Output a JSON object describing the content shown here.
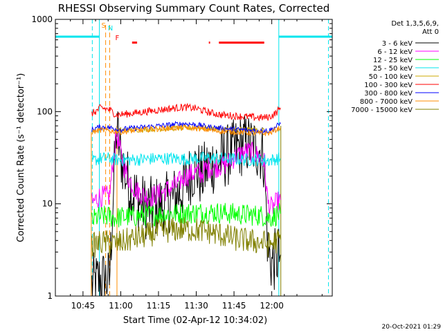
{
  "chart_data": {
    "type": "line",
    "title": "RHESSI Observing Summary Count Rates, Corrected",
    "xlabel": "Start Time (02-Apr-12 10:34:02)",
    "ylabel": "Corrected Count Rate (s⁻¹ detector⁻¹)",
    "yscale": "log",
    "ylim": [
      1,
      1000
    ],
    "xlim_minutes": [
      34.03,
      144.03
    ],
    "x_ticks": [
      "10:45",
      "11:00",
      "11:15",
      "11:30",
      "11:45",
      "12:00"
    ],
    "x_ticks_minutes": [
      45,
      60,
      75,
      90,
      105,
      120
    ],
    "y_ticks": [
      "1",
      "10",
      "100",
      "1000"
    ],
    "legend_header": [
      "Det 1,3,5,6,9,",
      "Att 0"
    ],
    "legend_position": "right, outside plot",
    "footer_date": "20-Oct-2021 01:29",
    "flags": [
      {
        "label": "S",
        "color": "#ff8c00"
      },
      {
        "label": "N",
        "color": "#00e5ee"
      },
      {
        "label": "F",
        "color": "#ff0000"
      }
    ],
    "night_intervals_minutes": [
      [
        34.03,
        51.5
      ],
      [
        122.8,
        144.03
      ]
    ],
    "night_level": 650,
    "night_color": "#00e5ee",
    "saa_lines_minutes": [
      54.0,
      55.6
    ],
    "flare_segments_minutes": [
      [
        55.3,
        57.3
      ],
      [
        61.5,
        65.5
      ],
      [
        92.0,
        94.5
      ],
      [
        96.0,
        116.0
      ]
    ],
    "flare_level": 560,
    "data_range_minutes": [
      48.3,
      123.6
    ],
    "series": [
      {
        "name": "3 - 6 keV",
        "color": "#000000",
        "x": [
          48.5,
          50.5,
          52.0,
          55.5,
          58.2,
          58.8,
          60,
          62,
          64,
          66,
          68,
          70,
          72,
          74,
          76,
          78,
          80,
          82,
          84,
          86,
          88,
          90,
          92,
          94,
          96,
          98,
          100,
          102,
          104,
          106,
          108,
          110,
          112,
          114,
          116,
          117,
          118.5,
          120,
          121.5,
          123.5
        ],
        "y": [
          1.3,
          1.4,
          1.5,
          1.5,
          62,
          55,
          34,
          20,
          15,
          12,
          10,
          9,
          9,
          9.2,
          9.5,
          10,
          11,
          12,
          14,
          17,
          22,
          25,
          19,
          24,
          27,
          28,
          30,
          33,
          36,
          40,
          43,
          45,
          42,
          40,
          37,
          30,
          3.0,
          2.3,
          2.5,
          2.8
        ]
      },
      {
        "name": "6 - 12 keV",
        "color": "#ff00ff",
        "x": [
          48.5,
          50,
          51.5,
          55.5,
          58.2,
          58.8,
          60,
          62,
          64,
          66,
          68,
          70,
          72,
          74,
          76,
          78,
          80,
          82,
          84,
          86,
          88,
          90,
          92,
          94,
          96,
          98,
          100,
          102,
          104,
          106,
          108,
          110,
          112,
          114,
          116,
          117,
          118.5,
          120,
          121.5,
          123.5
        ],
        "y": [
          10,
          11,
          12,
          12,
          58,
          50,
          35,
          22,
          17,
          14,
          13,
          12,
          12,
          12.5,
          13,
          14,
          15,
          16,
          18,
          20,
          21,
          22,
          21,
          24,
          25,
          25,
          26,
          27,
          30,
          33,
          35,
          37,
          36,
          34,
          31,
          28,
          10,
          9,
          10,
          11
        ]
      },
      {
        "name": "12 - 25 keV",
        "color": "#00ff00",
        "x": [
          48.5,
          50,
          52,
          55.5,
          58.2,
          60,
          65,
          70,
          75,
          80,
          85,
          90,
          95,
          100,
          105,
          110,
          115,
          117,
          118.5,
          120,
          121.5,
          123.5
        ],
        "y": [
          6.5,
          7,
          7.3,
          7.3,
          7,
          7.2,
          7.3,
          7.5,
          7.6,
          7.8,
          7.9,
          8,
          8.1,
          8,
          7.8,
          7.6,
          7.5,
          7.4,
          7,
          7.2,
          7.5,
          7.8
        ]
      },
      {
        "name": "25 - 50 keV",
        "color": "#00e5ee",
        "x": [
          48.5,
          50,
          52,
          55.5,
          58.2,
          60,
          65,
          70,
          75,
          80,
          85,
          90,
          95,
          100,
          105,
          110,
          115,
          117,
          118.5,
          120,
          121.5,
          123.5
        ],
        "y": [
          29,
          30,
          31,
          31,
          30,
          30,
          30,
          30.5,
          31,
          31,
          30.5,
          31,
          31.5,
          31,
          30.5,
          30,
          30,
          30,
          29.5,
          30,
          30.5,
          31
        ]
      },
      {
        "name": "50 - 100 keV",
        "color": "#ccaa00",
        "x": [
          58.2,
          60,
          65,
          70,
          75,
          80,
          85,
          90,
          95,
          100,
          105,
          110,
          115,
          117
        ],
        "y": [
          62,
          63,
          63.5,
          64,
          65,
          66,
          66,
          67,
          66,
          65,
          64,
          64,
          63,
          63
        ]
      },
      {
        "name": "100 - 300 keV",
        "color": "#ff0000",
        "x": [
          48.5,
          50,
          52,
          55.5,
          58.2,
          60,
          65,
          70,
          75,
          80,
          85,
          90,
          95,
          100,
          105,
          110,
          115,
          117,
          118.5,
          120,
          121.5,
          123.5
        ],
        "y": [
          95,
          100,
          110,
          105,
          92,
          93,
          96,
          100,
          104,
          108,
          112,
          108,
          98,
          92,
          90,
          88,
          86,
          86,
          87,
          90,
          96,
          110
        ]
      },
      {
        "name": "300 - 800 keV",
        "color": "#0000ff",
        "x": [
          48.5,
          50,
          52,
          55.5,
          58.2,
          60,
          65,
          70,
          75,
          80,
          85,
          90,
          95,
          100,
          105,
          110,
          115,
          117,
          118.5,
          120,
          121.5,
          123.5
        ],
        "y": [
          64,
          66,
          68,
          67,
          65,
          64,
          66,
          68,
          70,
          72,
          74,
          72,
          68,
          66,
          64,
          63,
          62,
          62,
          62,
          64,
          68,
          74
        ]
      },
      {
        "name": "800 - 7000 keV",
        "color": "#ff8c00",
        "x": [
          48.5,
          50,
          52,
          55.5,
          58.2,
          60,
          65,
          70,
          75,
          80,
          85,
          90,
          95,
          100,
          105,
          110,
          115,
          117,
          118.5,
          120,
          121.5,
          123.5
        ],
        "y": [
          60,
          61,
          63,
          62,
          61,
          60,
          62,
          64,
          65,
          66,
          67,
          66,
          63,
          61,
          60,
          59,
          58,
          58,
          58,
          60,
          63,
          67
        ]
      },
      {
        "name": "7000 - 15000 keV",
        "color": "#808000",
        "x": [
          48.5,
          50,
          52,
          55.5,
          58.2,
          60,
          65,
          70,
          75,
          80,
          85,
          90,
          95,
          100,
          105,
          110,
          115,
          117,
          118.5,
          120,
          121.5,
          123.5
        ],
        "y": [
          3.5,
          3.6,
          3.8,
          3.8,
          3.7,
          3.8,
          4.2,
          4.5,
          5,
          5.2,
          5.3,
          5.2,
          5,
          4.6,
          4.2,
          4,
          3.8,
          3.8,
          3.6,
          3.7,
          3.9,
          4.1
        ]
      }
    ]
  }
}
